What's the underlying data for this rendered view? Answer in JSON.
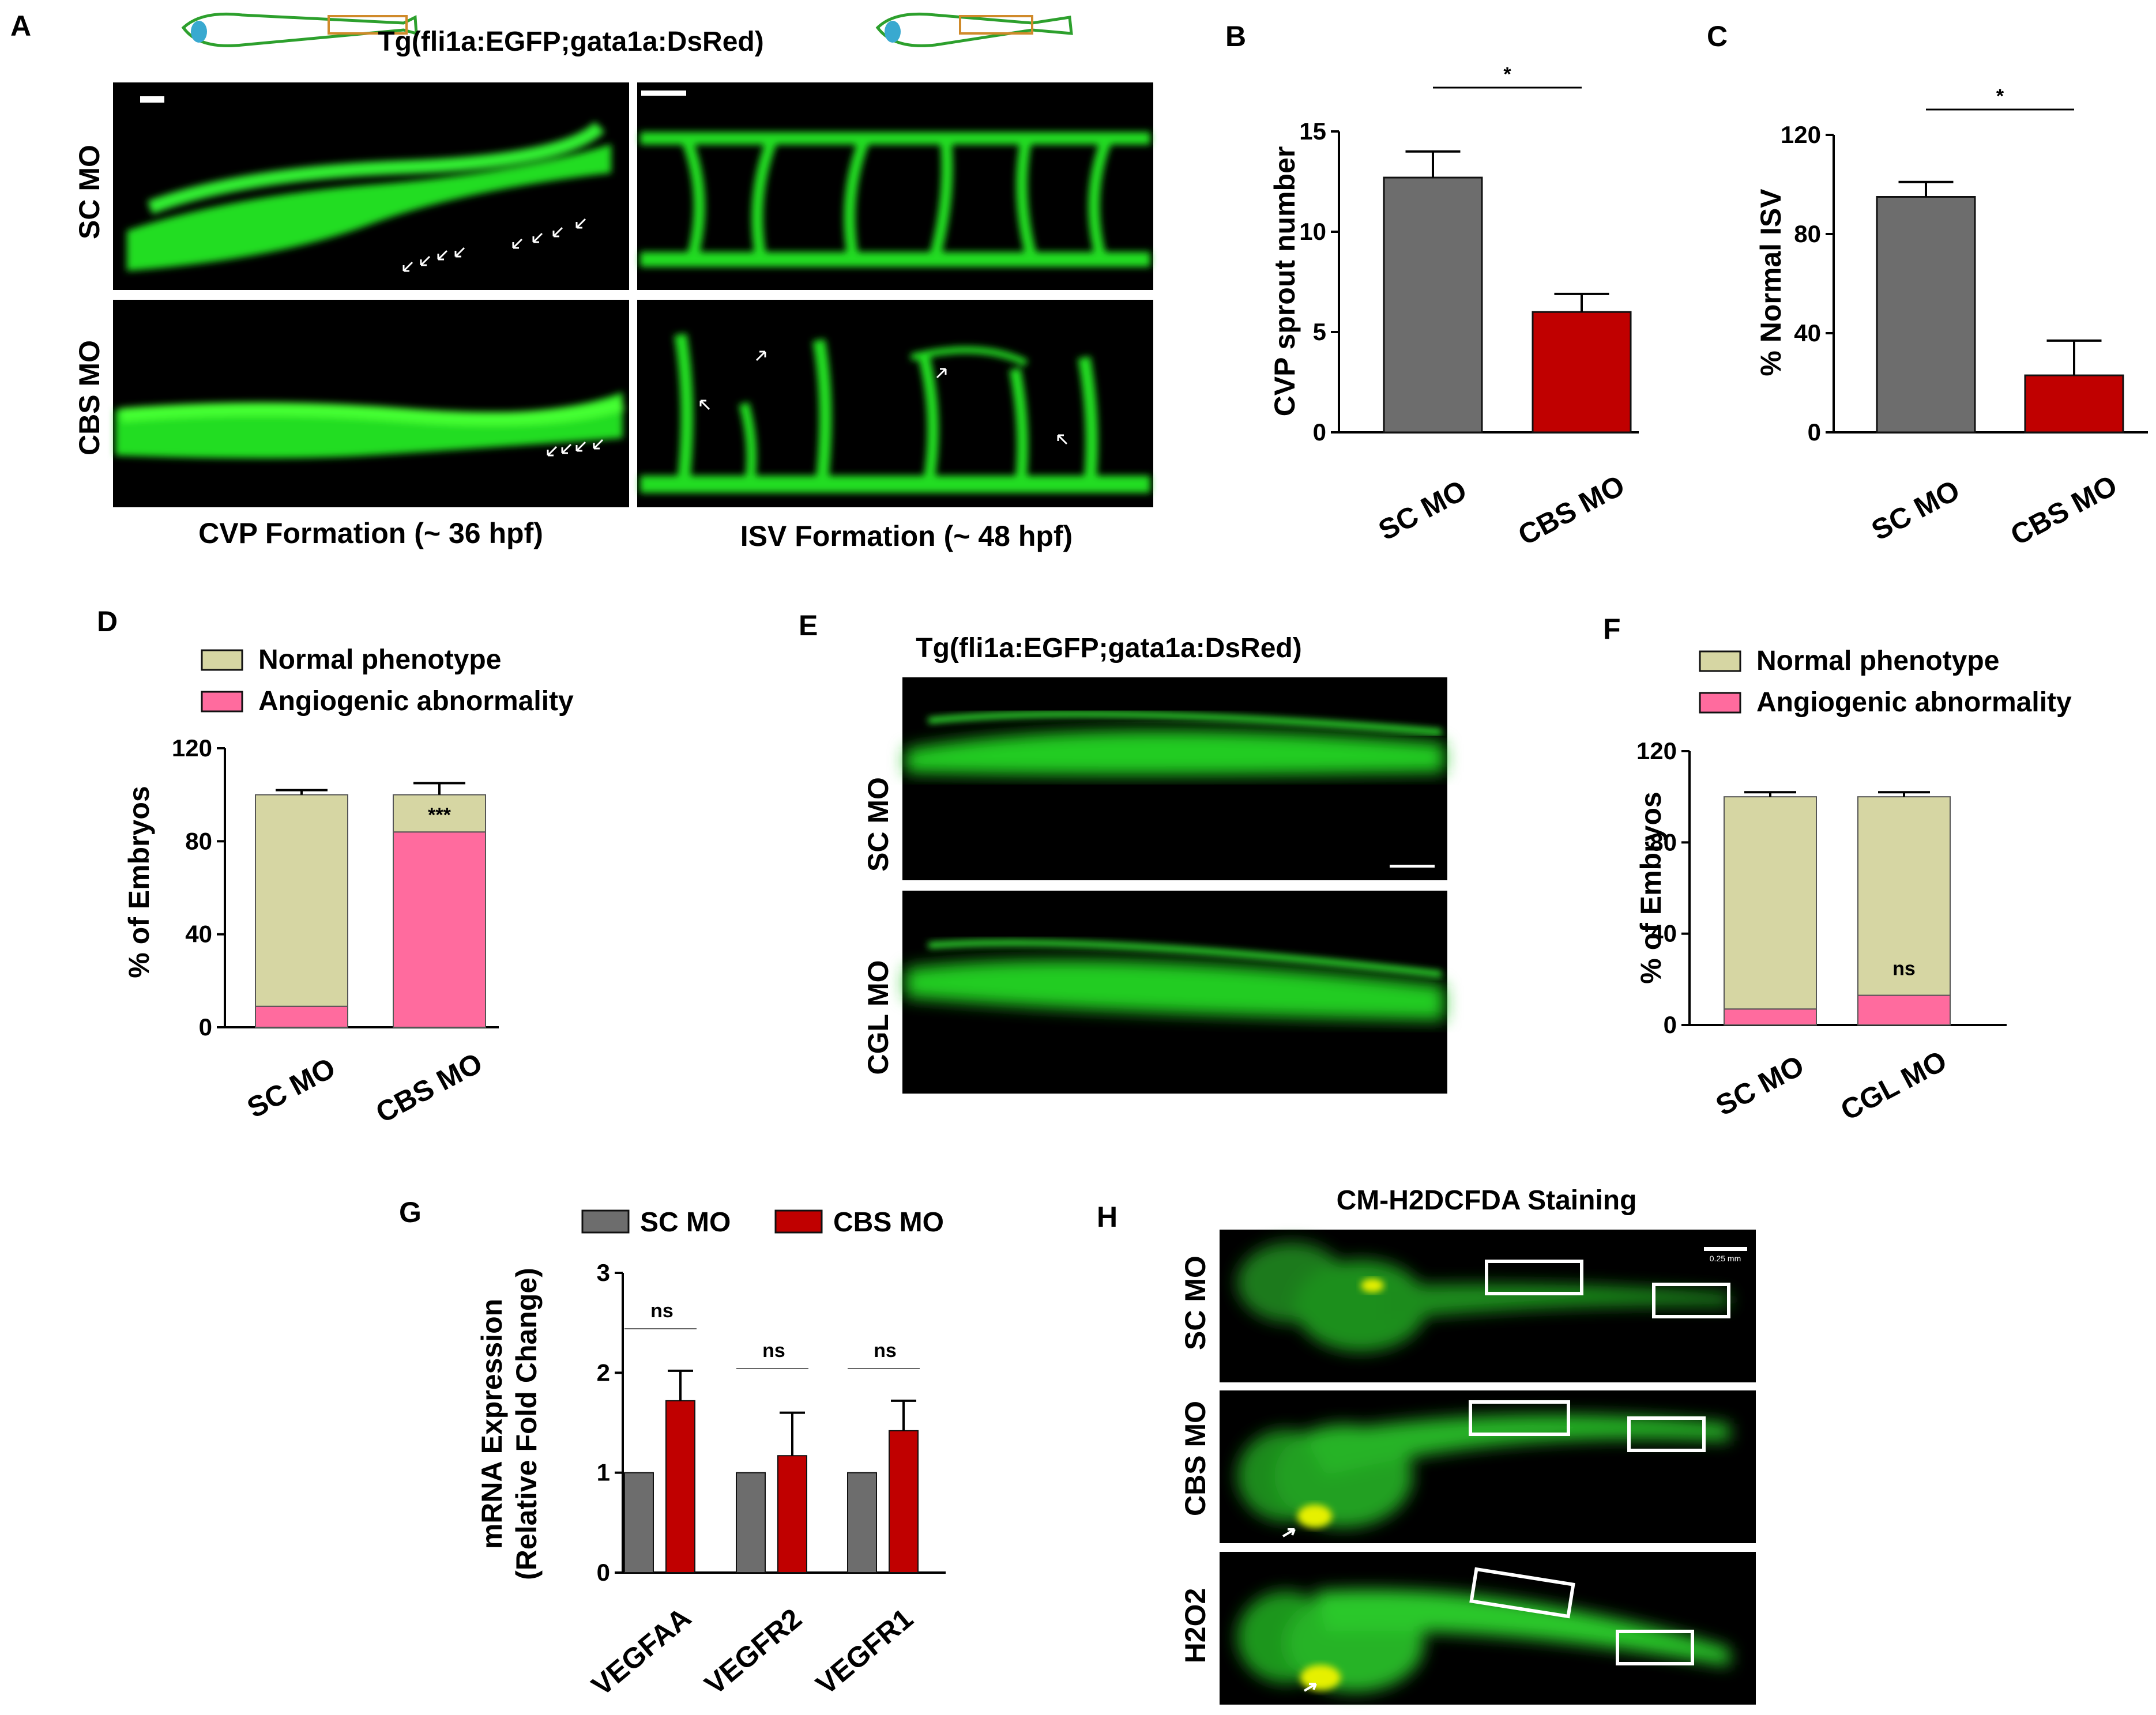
{
  "panels": {
    "A": {
      "letter": "A",
      "title": "Tg(fli1a:EGFP;gata1a:DsRed)",
      "rows": [
        "SC MO",
        "CBS MO"
      ],
      "captions": [
        "CVP Formation (~ 36 hpf)",
        "ISV Formation (~ 48 hpf)"
      ]
    },
    "B": {
      "letter": "B"
    },
    "C": {
      "letter": "C"
    },
    "D": {
      "letter": "D"
    },
    "E": {
      "letter": "E",
      "title": "Tg(fli1a:EGFP;gata1a:DsRed)",
      "rows": [
        "SC MO",
        "CGL MO"
      ]
    },
    "F": {
      "letter": "F"
    },
    "G": {
      "letter": "G"
    },
    "H": {
      "letter": "H",
      "title": "CM-H2DCFDA Staining",
      "rows": [
        "SC MO",
        "CBS MO",
        "H2O2"
      ],
      "scale_label": "0.25 mm"
    }
  },
  "colors": {
    "gray": "#6d6d6d",
    "red": "#c00000",
    "khaki": "#d6d6a3",
    "pink": "#ff6b9e",
    "green": "#2cf01e"
  },
  "chart_data": [
    {
      "id": "B",
      "type": "bar",
      "categories": [
        "SC MO",
        "CBS MO"
      ],
      "values": [
        12.7,
        6.0
      ],
      "errors": [
        1.3,
        0.9
      ],
      "colors": [
        "#6d6d6d",
        "#c00000"
      ],
      "ylabel": "CVP sprout number",
      "ylim": [
        0,
        15
      ],
      "yticks": [
        "0",
        "5",
        "10",
        "15"
      ],
      "significance": "*"
    },
    {
      "id": "C",
      "type": "bar",
      "categories": [
        "SC MO",
        "CBS MO"
      ],
      "values": [
        95,
        23
      ],
      "errors": [
        6,
        14
      ],
      "colors": [
        "#6d6d6d",
        "#c00000"
      ],
      "ylabel": "% Normal ISV",
      "ylim": [
        0,
        120
      ],
      "yticks": [
        "0",
        "40",
        "80",
        "120"
      ],
      "significance": "*"
    },
    {
      "id": "D",
      "type": "bar",
      "stacked": true,
      "categories": [
        "SC MO",
        "CBS MO"
      ],
      "ylabel": "% of Embryos",
      "ylim": [
        0,
        120
      ],
      "yticks": [
        "0",
        "40",
        "80",
        "120"
      ],
      "series": [
        {
          "name": "Angiogenic abnormality",
          "color": "#ff6b9e",
          "values": [
            9,
            84
          ],
          "errors": [
            2,
            4
          ]
        },
        {
          "name": "Normal phenotype",
          "color": "#d6d6a3",
          "values": [
            91,
            16
          ],
          "errors": [
            2,
            5
          ]
        }
      ],
      "annotations": [
        "",
        "***"
      ]
    },
    {
      "id": "F",
      "type": "bar",
      "stacked": true,
      "categories": [
        "SC MO",
        "CGL MO"
      ],
      "ylabel": "% of Embryos",
      "ylim": [
        0,
        120
      ],
      "yticks": [
        "0",
        "40",
        "80",
        "120"
      ],
      "series": [
        {
          "name": "Angiogenic abnormality",
          "color": "#ff6b9e",
          "values": [
            7,
            13
          ],
          "errors": [
            3,
            2
          ]
        },
        {
          "name": "Normal phenotype",
          "color": "#d6d6a3",
          "values": [
            93,
            87
          ],
          "errors": [
            2,
            2
          ]
        }
      ],
      "annotations": [
        "",
        "ns"
      ]
    },
    {
      "id": "G",
      "type": "bar",
      "categories": [
        "VEGFAA",
        "VEGFR2",
        "VEGFR1"
      ],
      "ylabel": "mRNA Expression",
      "ylabel2": "(Relative Fold Change)",
      "ylim": [
        0,
        3
      ],
      "yticks": [
        "0",
        "1",
        "2",
        "3"
      ],
      "series": [
        {
          "name": "SC MO",
          "color": "#6d6d6d",
          "values": [
            1,
            1,
            1
          ],
          "errors": [
            0,
            0,
            0
          ]
        },
        {
          "name": "CBS MO",
          "color": "#c00000",
          "values": [
            1.72,
            1.17,
            1.42
          ],
          "errors": [
            0.3,
            0.43,
            0.3
          ]
        }
      ],
      "annotations": [
        "ns",
        "ns",
        "ns"
      ]
    }
  ]
}
